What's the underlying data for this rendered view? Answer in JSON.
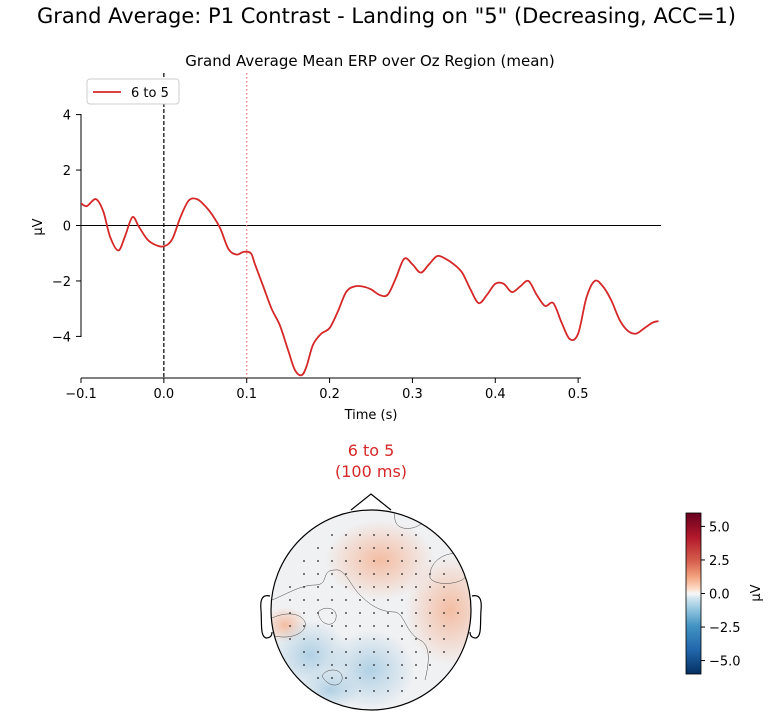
{
  "figure": {
    "suptitle": "Grand Average: P1 Contrast - Landing on \"5\" (Decreasing, ACC=1)"
  },
  "chart_data": [
    {
      "type": "line",
      "title": "Grand Average Mean ERP over Oz Region (mean)",
      "xlabel": "Time (s)",
      "ylabel": "µV",
      "xlim": [
        -0.1,
        0.6
      ],
      "ylim": [
        -5.5,
        5.5
      ],
      "xticks": [
        -0.1,
        0.0,
        0.1,
        0.2,
        0.3,
        0.4,
        0.5
      ],
      "xtick_labels": [
        "−0.1",
        "0.0",
        "0.1",
        "0.2",
        "0.3",
        "0.4",
        "0.5"
      ],
      "yticks": [
        -4,
        -2,
        0,
        2,
        4
      ],
      "ytick_labels": [
        "−4",
        "−2",
        "0",
        "2",
        "4"
      ],
      "legend": {
        "position": "top-left",
        "entries": [
          "6 to 5"
        ]
      },
      "markers": [
        {
          "x": 0.0,
          "style": "dashed",
          "color": "#000000"
        },
        {
          "x": 0.1,
          "style": "dotted",
          "color": "#f07070"
        }
      ],
      "series": [
        {
          "name": "6 to 5",
          "color": "#d62728",
          "x": [
            -0.1,
            -0.093,
            -0.082,
            -0.073,
            -0.065,
            -0.055,
            -0.047,
            -0.038,
            -0.03,
            -0.02,
            -0.01,
            0.0,
            0.01,
            0.02,
            0.03,
            0.04,
            0.05,
            0.058,
            0.068,
            0.078,
            0.088,
            0.096,
            0.105,
            0.11,
            0.12,
            0.13,
            0.14,
            0.15,
            0.158,
            0.166,
            0.172,
            0.18,
            0.19,
            0.2,
            0.21,
            0.22,
            0.23,
            0.24,
            0.25,
            0.26,
            0.27,
            0.28,
            0.29,
            0.3,
            0.31,
            0.32,
            0.33,
            0.34,
            0.35,
            0.36,
            0.37,
            0.38,
            0.39,
            0.4,
            0.41,
            0.42,
            0.43,
            0.44,
            0.45,
            0.46,
            0.47,
            0.48,
            0.49,
            0.5,
            0.51,
            0.52,
            0.53,
            0.54,
            0.55,
            0.56,
            0.57,
            0.58,
            0.59,
            0.597
          ],
          "values": [
            0.8,
            0.7,
            0.95,
            0.5,
            -0.4,
            -0.9,
            -0.4,
            0.3,
            -0.05,
            -0.5,
            -0.7,
            -0.75,
            -0.5,
            0.3,
            0.9,
            0.95,
            0.7,
            0.4,
            -0.1,
            -0.85,
            -1.05,
            -0.95,
            -1.0,
            -1.4,
            -2.2,
            -3.0,
            -3.6,
            -4.5,
            -5.2,
            -5.4,
            -5.1,
            -4.3,
            -3.9,
            -3.7,
            -3.1,
            -2.4,
            -2.2,
            -2.2,
            -2.3,
            -2.5,
            -2.5,
            -1.9,
            -1.2,
            -1.4,
            -1.7,
            -1.4,
            -1.1,
            -1.2,
            -1.4,
            -1.7,
            -2.3,
            -2.8,
            -2.5,
            -2.1,
            -2.1,
            -2.4,
            -2.2,
            -2.0,
            -2.5,
            -2.9,
            -2.8,
            -3.5,
            -4.1,
            -3.9,
            -2.6,
            -2.0,
            -2.2,
            -2.7,
            -3.4,
            -3.8,
            -3.9,
            -3.7,
            -3.5,
            -3.45
          ]
        }
      ]
    },
    {
      "type": "heatmap",
      "title": "6 to 5",
      "subtitle": "(100 ms)",
      "colorbar": {
        "label": "µV",
        "min": -6,
        "max": 6,
        "ticks": [
          5.0,
          2.5,
          0.0,
          -2.5,
          -5.0
        ],
        "tick_labels": [
          "5.0",
          "2.5",
          "0.0",
          "−2.5",
          "−5.0"
        ],
        "colormap": "RdBu_r"
      },
      "scalp_regions": [
        {
          "label": "right-temporal",
          "value": 1.6
        },
        {
          "label": "frontal-center",
          "value": 1.3
        },
        {
          "label": "left-temporal",
          "value": 1.8
        },
        {
          "label": "left-parietal",
          "value": -1.4
        },
        {
          "label": "occipital-center",
          "value": -1.6
        },
        {
          "label": "left-occipital",
          "value": -1.0
        }
      ]
    }
  ]
}
